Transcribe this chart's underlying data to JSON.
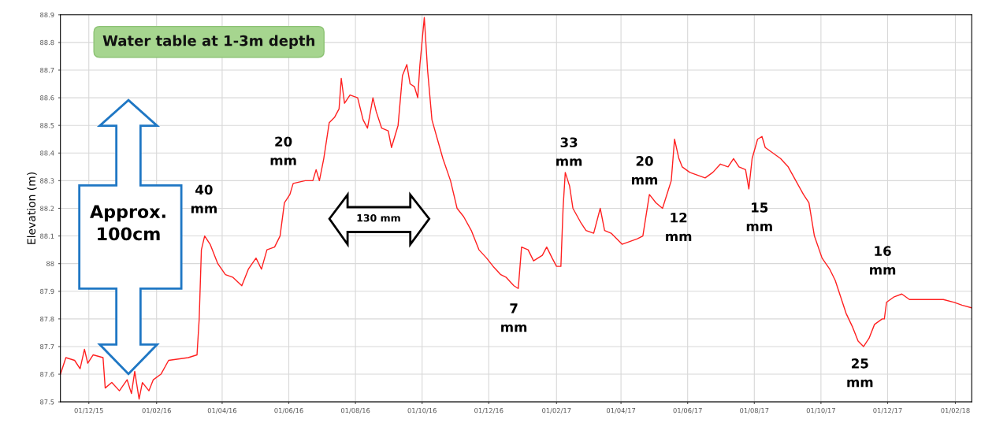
{
  "chart_data": {
    "type": "line",
    "title": "Water table at 1-3m depth",
    "ylabel": "Elevation (m)",
    "x": [
      "2015-11-05",
      "2015-11-10",
      "2015-11-18",
      "2015-11-23",
      "2015-11-27",
      "2015-11-30",
      "2015-12-05",
      "2015-12-14",
      "2015-12-16",
      "2015-12-22",
      "2015-12-29",
      "2016-01-05",
      "2016-01-09",
      "2016-01-12",
      "2016-01-16",
      "2016-01-19",
      "2016-01-25",
      "2016-01-29",
      "2016-02-05",
      "2016-02-12",
      "2016-03-01",
      "2016-03-09",
      "2016-03-11",
      "2016-03-13",
      "2016-03-16",
      "2016-03-21",
      "2016-03-28",
      "2016-04-04",
      "2016-04-11",
      "2016-04-19",
      "2016-04-25",
      "2016-05-02",
      "2016-05-07",
      "2016-05-12",
      "2016-05-19",
      "2016-05-24",
      "2016-05-28",
      "2016-06-02",
      "2016-06-05",
      "2016-06-16",
      "2016-06-23",
      "2016-06-26",
      "2016-06-29",
      "2016-07-03",
      "2016-07-08",
      "2016-07-13",
      "2016-07-17",
      "2016-07-19",
      "2016-07-22",
      "2016-07-27",
      "2016-08-03",
      "2016-08-08",
      "2016-08-12",
      "2016-08-17",
      "2016-08-20",
      "2016-08-25",
      "2016-08-31",
      "2016-09-03",
      "2016-09-09",
      "2016-09-13",
      "2016-09-17",
      "2016-09-20",
      "2016-09-24",
      "2016-09-27",
      "2016-09-29",
      "2016-10-03",
      "2016-10-06",
      "2016-10-10",
      "2016-10-15",
      "2016-10-20",
      "2016-10-27",
      "2016-11-02",
      "2016-11-08",
      "2016-11-15",
      "2016-11-22",
      "2016-11-29",
      "2016-12-05",
      "2016-12-12",
      "2016-12-17",
      "2016-12-24",
      "2016-12-28",
      "2016-12-31",
      "2017-01-06",
      "2017-01-11",
      "2017-01-19",
      "2017-01-23",
      "2017-01-28",
      "2017-02-01",
      "2017-02-05",
      "2017-02-07",
      "2017-02-09",
      "2017-02-13",
      "2017-02-16",
      "2017-02-23",
      "2017-02-28",
      "2017-03-07",
      "2017-03-13",
      "2017-03-17",
      "2017-03-23",
      "2017-03-28",
      "2017-04-02",
      "2017-04-09",
      "2017-04-16",
      "2017-04-21",
      "2017-04-25",
      "2017-04-27",
      "2017-05-03",
      "2017-05-09",
      "2017-05-13",
      "2017-05-17",
      "2017-05-20",
      "2017-05-24",
      "2017-05-27",
      "2017-06-03",
      "2017-06-10",
      "2017-06-17",
      "2017-06-24",
      "2017-07-01",
      "2017-07-08",
      "2017-07-13",
      "2017-07-18",
      "2017-07-24",
      "2017-07-27",
      "2017-07-30",
      "2017-08-04",
      "2017-08-08",
      "2017-08-11",
      "2017-08-18",
      "2017-08-25",
      "2017-09-01",
      "2017-09-08",
      "2017-09-15",
      "2017-09-20",
      "2017-09-25",
      "2017-10-02",
      "2017-10-09",
      "2017-10-14",
      "2017-10-19",
      "2017-10-24",
      "2017-10-30",
      "2017-11-04",
      "2017-11-09",
      "2017-11-14",
      "2017-11-19",
      "2017-11-26",
      "2017-11-28",
      "2017-11-30",
      "2017-12-07",
      "2017-12-14",
      "2017-12-21",
      "2018-01-03",
      "2018-01-21",
      "2018-01-31",
      "2018-02-07",
      "2018-02-16"
    ],
    "series": [
      {
        "color": "#ff2020",
        "values": [
          87.6,
          87.66,
          87.65,
          87.62,
          87.69,
          87.64,
          87.67,
          87.66,
          87.55,
          87.57,
          87.54,
          87.58,
          87.53,
          87.61,
          87.51,
          87.57,
          87.54,
          87.58,
          87.6,
          87.65,
          87.66,
          87.67,
          87.8,
          88.05,
          88.1,
          88.07,
          88.0,
          87.96,
          87.95,
          87.92,
          87.98,
          88.02,
          87.98,
          88.05,
          88.06,
          88.1,
          88.22,
          88.25,
          88.29,
          88.3,
          88.3,
          88.34,
          88.3,
          88.38,
          88.51,
          88.53,
          88.56,
          88.67,
          88.58,
          88.61,
          88.6,
          88.52,
          88.49,
          88.6,
          88.55,
          88.49,
          88.48,
          88.42,
          88.5,
          88.68,
          88.72,
          88.65,
          88.64,
          88.6,
          88.72,
          88.89,
          88.7,
          88.52,
          88.45,
          88.38,
          88.3,
          88.2,
          88.17,
          88.12,
          88.05,
          88.02,
          87.99,
          87.96,
          87.95,
          87.92,
          87.91,
          88.06,
          88.05,
          88.01,
          88.03,
          88.06,
          88.02,
          87.99,
          87.99,
          88.2,
          88.33,
          88.28,
          88.2,
          88.15,
          88.12,
          88.11,
          88.2,
          88.12,
          88.11,
          88.09,
          88.07,
          88.08,
          88.09,
          88.1,
          88.2,
          88.25,
          88.22,
          88.2,
          88.25,
          88.3,
          88.45,
          88.38,
          88.35,
          88.33,
          88.32,
          88.31,
          88.33,
          88.36,
          88.35,
          88.38,
          88.35,
          88.34,
          88.27,
          88.38,
          88.45,
          88.46,
          88.42,
          88.4,
          88.38,
          88.35,
          88.3,
          88.25,
          88.22,
          88.1,
          88.02,
          87.98,
          87.94,
          87.88,
          87.82,
          87.77,
          87.72,
          87.7,
          87.73,
          87.78,
          87.8,
          87.8,
          87.86,
          87.88,
          87.89,
          87.87,
          87.87,
          87.87,
          87.86,
          87.85,
          87.84
        ]
      }
    ],
    "xlim": [
      "2015-11-05",
      "2018-02-16"
    ],
    "xticks": [
      {
        "value": "2015-12-01",
        "label": "01/12/15"
      },
      {
        "value": "2016-02-01",
        "label": "01/02/16"
      },
      {
        "value": "2016-04-01",
        "label": "01/04/16"
      },
      {
        "value": "2016-06-01",
        "label": "01/06/16"
      },
      {
        "value": "2016-08-01",
        "label": "01/08/16"
      },
      {
        "value": "2016-10-01",
        "label": "01/10/16"
      },
      {
        "value": "2016-12-01",
        "label": "01/12/16"
      },
      {
        "value": "2017-02-01",
        "label": "01/02/17"
      },
      {
        "value": "2017-04-01",
        "label": "01/04/17"
      },
      {
        "value": "2017-06-01",
        "label": "01/06/17"
      },
      {
        "value": "2017-08-01",
        "label": "01/08/17"
      },
      {
        "value": "2017-10-01",
        "label": "01/10/17"
      },
      {
        "value": "2017-12-01",
        "label": "01/12/17"
      },
      {
        "value": "2018-02-01",
        "label": "01/02/18"
      }
    ],
    "ylim": [
      87.5,
      88.9
    ],
    "yticks": [
      87.5,
      87.6,
      87.7,
      87.8,
      87.9,
      88,
      88.1,
      88.2,
      88.3,
      88.4,
      88.5,
      88.6,
      88.7,
      88.8,
      88.9
    ],
    "grid": true,
    "marker": "none",
    "line_style": "solid",
    "annotations": [
      "Approx.\n100cm",
      "40\nmm",
      "20\nmm",
      "130 mm",
      "7\nmm",
      "33\nmm",
      "20\nmm",
      "12\nmm",
      "15\nmm",
      "25\nmm",
      "16\nmm"
    ]
  }
}
